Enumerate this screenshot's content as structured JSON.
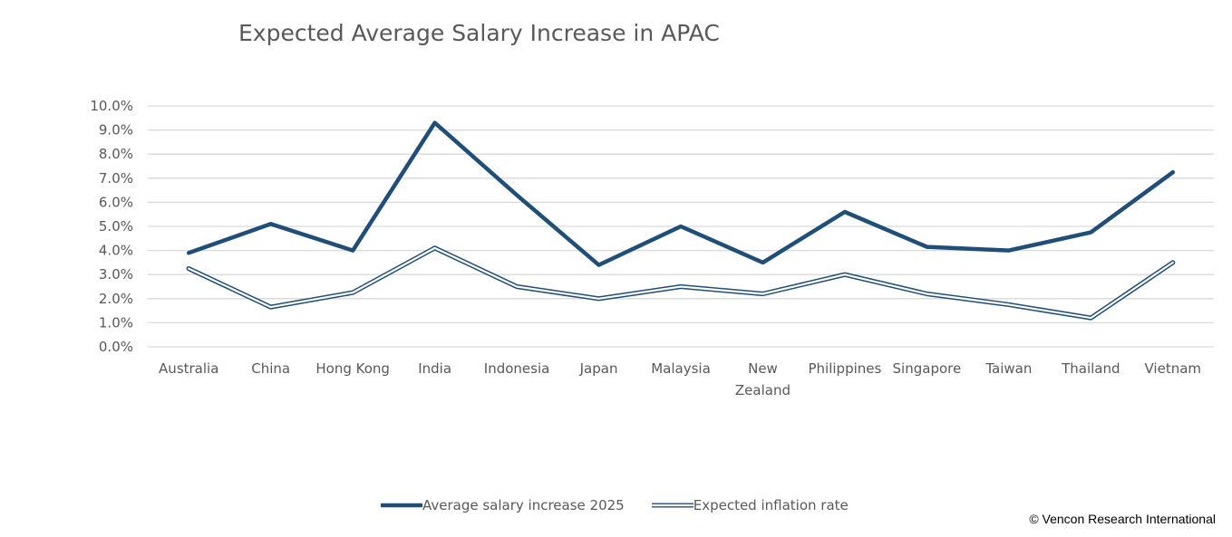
{
  "title": "Expected Average Salary Increase in APAC",
  "copyright": "© Vencon Research International",
  "colors": {
    "series_primary": "#1f4e79",
    "gridline": "#d9d9d9",
    "text": "#595959"
  },
  "chart_data": {
    "type": "line",
    "title": "Expected Average Salary Increase in APAC",
    "categories": [
      "Australia",
      "China",
      "Hong Kong",
      "India",
      "Indonesia",
      "Japan",
      "Malaysia",
      "New Zealand",
      "Philippines",
      "Singapore",
      "Taiwan",
      "Thailand",
      "Vietnam"
    ],
    "category_lines": [
      [
        "Australia"
      ],
      [
        "China"
      ],
      [
        "Hong Kong"
      ],
      [
        "India"
      ],
      [
        "Indonesia"
      ],
      [
        "Japan"
      ],
      [
        "Malaysia"
      ],
      [
        "New",
        "Zealand"
      ],
      [
        "Philippines"
      ],
      [
        "Singapore"
      ],
      [
        "Taiwan"
      ],
      [
        "Thailand"
      ],
      [
        "Vietnam"
      ]
    ],
    "y_ticks": [
      "0.0%",
      "1.0%",
      "2.0%",
      "3.0%",
      "4.0%",
      "5.0%",
      "6.0%",
      "7.0%",
      "8.0%",
      "9.0%",
      "10.0%"
    ],
    "ylim": [
      0,
      10
    ],
    "grid": true,
    "legend_position": "bottom",
    "series": [
      {
        "name": "Average salary increase 2025",
        "style": "thick",
        "color": "#1f4e79",
        "values": [
          3.9,
          5.1,
          4.0,
          9.3,
          6.3,
          3.4,
          5.0,
          3.5,
          5.6,
          4.15,
          4.0,
          4.75,
          7.25
        ]
      },
      {
        "name": "Expected inflation rate",
        "style": "double",
        "color": "#1f4e79",
        "values": [
          3.25,
          1.65,
          2.25,
          4.1,
          2.5,
          2.0,
          2.5,
          2.2,
          3.0,
          2.2,
          1.75,
          1.2,
          3.5
        ]
      }
    ]
  }
}
